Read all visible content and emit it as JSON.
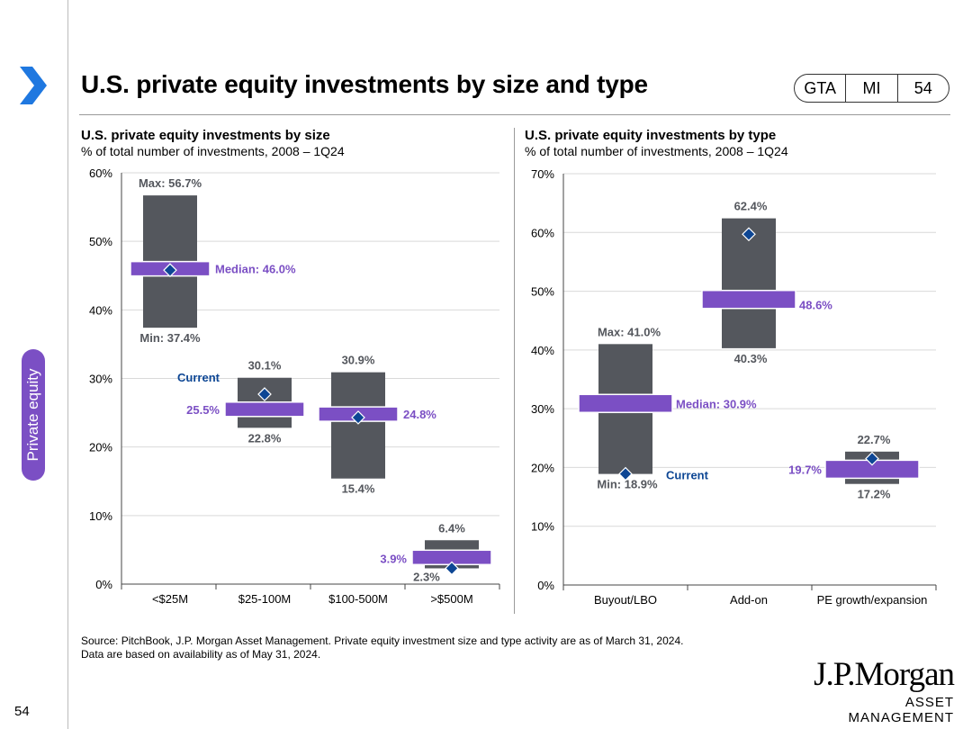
{
  "header": {
    "title": "U.S. private equity investments by size and type",
    "tags": [
      "GTA",
      "MI",
      "54"
    ]
  },
  "sidebar": {
    "section_label": "Private equity",
    "page_number": "54"
  },
  "footer": {
    "source_line1": "Source: PitchBook, J.P. Morgan Asset Management. Private equity investment size and type activity are as of March 31, 2024.",
    "source_line2": "Data are based on availability as of May 31, 2024.",
    "logo_name": "J.P.Morgan",
    "logo_sub": "ASSET MANAGEMENT"
  },
  "colors": {
    "bar": "#54575d",
    "median": "#7b4fc4",
    "current": "#0d4694",
    "grid": "#d9d9d9"
  },
  "chart_data": [
    {
      "type": "range-box",
      "title": "U.S. private equity investments by size",
      "subtitle": "% of total number of investments, 2008 – 1Q24",
      "ylim": [
        0,
        60
      ],
      "yticks": [
        0,
        10,
        20,
        30,
        40,
        50,
        60
      ],
      "ytick_labels": [
        "0%",
        "10%",
        "20%",
        "30%",
        "40%",
        "50%",
        "60%"
      ],
      "categories": [
        "<$25M",
        "$25-100M",
        "$100-500M",
        ">$500M"
      ],
      "series": [
        {
          "name": "Max",
          "values": [
            56.7,
            30.1,
            30.9,
            6.4
          ]
        },
        {
          "name": "Min",
          "values": [
            37.4,
            22.8,
            15.4,
            2.3
          ]
        },
        {
          "name": "Median",
          "values": [
            46.0,
            25.5,
            24.8,
            3.9
          ]
        },
        {
          "name": "Current",
          "values": [
            45.8,
            27.7,
            24.3,
            2.3
          ]
        }
      ],
      "data_labels": {
        "max": [
          "Max: 56.7%",
          "30.1%",
          "30.9%",
          "6.4%"
        ],
        "min": [
          "Min: 37.4%",
          "22.8%",
          "15.4%",
          "2.3%"
        ],
        "median": [
          "Median: 46.0%",
          "25.5%",
          "24.8%",
          "3.9%"
        ],
        "current": [
          "",
          "Current",
          "",
          ""
        ]
      }
    },
    {
      "type": "range-box",
      "title": "U.S. private equity investments by type",
      "subtitle": "% of total number of investments, 2008 – 1Q24",
      "ylim": [
        0,
        70
      ],
      "yticks": [
        0,
        10,
        20,
        30,
        40,
        50,
        60,
        70
      ],
      "ytick_labels": [
        "0%",
        "10%",
        "20%",
        "30%",
        "40%",
        "50%",
        "60%",
        "70%"
      ],
      "categories": [
        "Buyout/LBO",
        "Add-on",
        "PE growth/expansion"
      ],
      "series": [
        {
          "name": "Max",
          "values": [
            41.0,
            62.4,
            22.7
          ]
        },
        {
          "name": "Min",
          "values": [
            18.9,
            40.3,
            17.2
          ]
        },
        {
          "name": "Median",
          "values": [
            30.9,
            48.6,
            19.7
          ]
        },
        {
          "name": "Current",
          "values": [
            18.9,
            59.7,
            21.5
          ]
        }
      ],
      "data_labels": {
        "max": [
          "Max: 41.0%",
          "62.4%",
          "22.7%"
        ],
        "min": [
          "Min: 18.9%",
          "40.3%",
          "17.2%"
        ],
        "median": [
          "Median: 30.9%",
          "48.6%",
          "19.7%"
        ],
        "current": [
          "Current",
          "",
          ""
        ]
      }
    }
  ]
}
